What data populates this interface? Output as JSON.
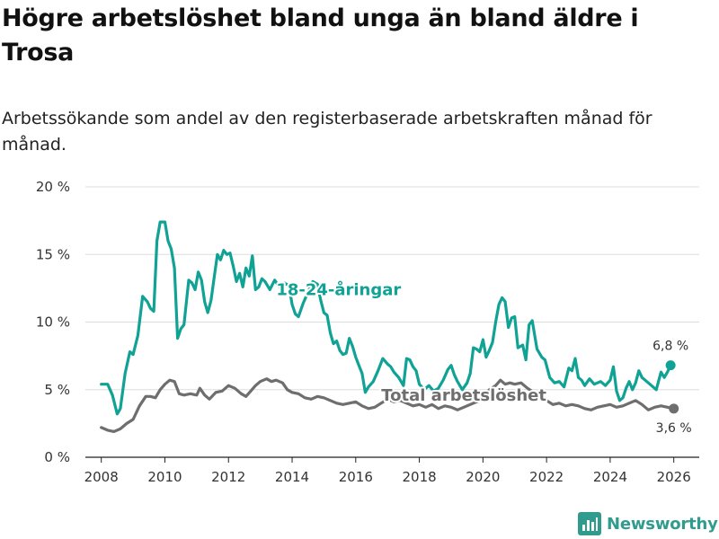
{
  "title": "Högre arbetslöshet bland unga än bland äldre i Trosa",
  "subtitle": "Arbetssökande som andel av den registerbaserade arbetskraften månad för månad.",
  "brand": {
    "name": "Newsworthy",
    "icon": "newsworthy-logo-icon",
    "color": "#2f9c8e"
  },
  "colors": {
    "youth": "#10a294",
    "total": "#6e6e6e",
    "grid": "#dddddd",
    "axis": "#222222",
    "text": "#333333"
  },
  "chart_data": {
    "type": "line",
    "xlabel": "",
    "ylabel": "",
    "xlim": [
      2007.5,
      2026.8
    ],
    "ylim": [
      0,
      20
    ],
    "grid": true,
    "y_ticks": [
      {
        "value": 0,
        "label": "0 %"
      },
      {
        "value": 5,
        "label": "5 %"
      },
      {
        "value": 10,
        "label": "10 %"
      },
      {
        "value": 15,
        "label": "15 %"
      },
      {
        "value": 20,
        "label": "20 %"
      }
    ],
    "x_ticks": [
      {
        "value": 2008,
        "label": "2008"
      },
      {
        "value": 2010,
        "label": "2010"
      },
      {
        "value": 2012,
        "label": "2012"
      },
      {
        "value": 2014,
        "label": "2014"
      },
      {
        "value": 2016,
        "label": "2016"
      },
      {
        "value": 2018,
        "label": "2018"
      },
      {
        "value": 2020,
        "label": "2020"
      },
      {
        "value": 2022,
        "label": "2022"
      },
      {
        "value": 2024,
        "label": "2024"
      },
      {
        "value": 2026,
        "label": "2026"
      }
    ],
    "series": [
      {
        "name": "18-24-åringar",
        "label_position": {
          "x": 2013.5,
          "y": 12.0
        },
        "end_label": "6,8 %",
        "points": [
          [
            2008.0,
            5.4
          ],
          [
            2008.2,
            5.4
          ],
          [
            2008.35,
            4.6
          ],
          [
            2008.5,
            3.2
          ],
          [
            2008.6,
            3.6
          ],
          [
            2008.75,
            6.2
          ],
          [
            2008.9,
            7.8
          ],
          [
            2009.0,
            7.6
          ],
          [
            2009.15,
            9.0
          ],
          [
            2009.3,
            11.9
          ],
          [
            2009.45,
            11.5
          ],
          [
            2009.55,
            11.0
          ],
          [
            2009.65,
            10.8
          ],
          [
            2009.75,
            16.0
          ],
          [
            2009.85,
            17.4
          ],
          [
            2010.0,
            17.4
          ],
          [
            2010.1,
            16.0
          ],
          [
            2010.2,
            15.4
          ],
          [
            2010.3,
            14.0
          ],
          [
            2010.4,
            8.8
          ],
          [
            2010.5,
            9.5
          ],
          [
            2010.6,
            9.8
          ],
          [
            2010.75,
            13.1
          ],
          [
            2010.85,
            12.9
          ],
          [
            2010.95,
            12.4
          ],
          [
            2011.05,
            13.7
          ],
          [
            2011.15,
            13.1
          ],
          [
            2011.25,
            11.5
          ],
          [
            2011.35,
            10.7
          ],
          [
            2011.45,
            11.6
          ],
          [
            2011.55,
            13.3
          ],
          [
            2011.65,
            15.0
          ],
          [
            2011.75,
            14.6
          ],
          [
            2011.85,
            15.3
          ],
          [
            2011.95,
            15.0
          ],
          [
            2012.05,
            15.1
          ],
          [
            2012.15,
            14.1
          ],
          [
            2012.25,
            13.0
          ],
          [
            2012.35,
            13.6
          ],
          [
            2012.45,
            12.6
          ],
          [
            2012.55,
            14.0
          ],
          [
            2012.65,
            13.4
          ],
          [
            2012.75,
            14.9
          ],
          [
            2012.85,
            12.4
          ],
          [
            2012.95,
            12.6
          ],
          [
            2013.05,
            13.2
          ],
          [
            2013.15,
            13.0
          ],
          [
            2013.3,
            12.4
          ],
          [
            2013.45,
            13.1
          ],
          [
            2013.6,
            12.6
          ],
          [
            2013.75,
            12.9
          ],
          [
            2013.9,
            12.7
          ],
          [
            2014.0,
            11.3
          ],
          [
            2014.1,
            10.6
          ],
          [
            2014.2,
            10.4
          ],
          [
            2014.35,
            11.4
          ],
          [
            2014.5,
            12.2
          ],
          [
            2014.65,
            13.0
          ],
          [
            2014.8,
            12.8
          ],
          [
            2014.9,
            11.6
          ],
          [
            2015.0,
            10.7
          ],
          [
            2015.1,
            10.5
          ],
          [
            2015.2,
            9.2
          ],
          [
            2015.3,
            8.4
          ],
          [
            2015.4,
            8.6
          ],
          [
            2015.5,
            7.9
          ],
          [
            2015.6,
            7.6
          ],
          [
            2015.7,
            7.7
          ],
          [
            2015.8,
            8.8
          ],
          [
            2015.9,
            8.2
          ],
          [
            2016.0,
            7.4
          ],
          [
            2016.1,
            6.8
          ],
          [
            2016.2,
            6.2
          ],
          [
            2016.3,
            4.8
          ],
          [
            2016.4,
            5.2
          ],
          [
            2016.55,
            5.6
          ],
          [
            2016.7,
            6.4
          ],
          [
            2016.85,
            7.3
          ],
          [
            2017.0,
            6.9
          ],
          [
            2017.1,
            6.7
          ],
          [
            2017.2,
            6.3
          ],
          [
            2017.35,
            5.9
          ],
          [
            2017.5,
            5.3
          ],
          [
            2017.6,
            7.3
          ],
          [
            2017.7,
            7.2
          ],
          [
            2017.8,
            6.7
          ],
          [
            2017.9,
            6.4
          ],
          [
            2018.0,
            5.4
          ],
          [
            2018.15,
            5.0
          ],
          [
            2018.3,
            5.3
          ],
          [
            2018.45,
            4.9
          ],
          [
            2018.6,
            5.1
          ],
          [
            2018.75,
            5.7
          ],
          [
            2018.9,
            6.5
          ],
          [
            2019.0,
            6.8
          ],
          [
            2019.1,
            6.1
          ],
          [
            2019.2,
            5.6
          ],
          [
            2019.35,
            5.0
          ],
          [
            2019.5,
            5.5
          ],
          [
            2019.6,
            6.2
          ],
          [
            2019.7,
            8.1
          ],
          [
            2019.8,
            8.0
          ],
          [
            2019.9,
            7.8
          ],
          [
            2020.0,
            8.7
          ],
          [
            2020.1,
            7.4
          ],
          [
            2020.2,
            7.9
          ],
          [
            2020.3,
            8.5
          ],
          [
            2020.4,
            10.0
          ],
          [
            2020.5,
            11.3
          ],
          [
            2020.6,
            11.8
          ],
          [
            2020.7,
            11.5
          ],
          [
            2020.8,
            9.6
          ],
          [
            2020.9,
            10.3
          ],
          [
            2021.0,
            10.4
          ],
          [
            2021.1,
            8.1
          ],
          [
            2021.25,
            8.3
          ],
          [
            2021.35,
            7.2
          ],
          [
            2021.45,
            9.8
          ],
          [
            2021.55,
            10.1
          ],
          [
            2021.7,
            8.0
          ],
          [
            2021.85,
            7.4
          ],
          [
            2021.95,
            7.2
          ],
          [
            2022.1,
            5.9
          ],
          [
            2022.25,
            5.5
          ],
          [
            2022.4,
            5.6
          ],
          [
            2022.55,
            5.2
          ],
          [
            2022.7,
            6.6
          ],
          [
            2022.8,
            6.4
          ],
          [
            2022.9,
            7.3
          ],
          [
            2023.0,
            5.9
          ],
          [
            2023.1,
            5.7
          ],
          [
            2023.2,
            5.3
          ],
          [
            2023.35,
            5.8
          ],
          [
            2023.5,
            5.4
          ],
          [
            2023.7,
            5.6
          ],
          [
            2023.85,
            5.3
          ],
          [
            2024.0,
            5.7
          ],
          [
            2024.1,
            6.7
          ],
          [
            2024.2,
            4.9
          ],
          [
            2024.3,
            4.2
          ],
          [
            2024.4,
            4.4
          ],
          [
            2024.5,
            5.1
          ],
          [
            2024.6,
            5.6
          ],
          [
            2024.7,
            5.0
          ],
          [
            2024.8,
            5.5
          ],
          [
            2024.9,
            6.4
          ],
          [
            2025.0,
            5.9
          ],
          [
            2025.15,
            5.6
          ],
          [
            2025.3,
            5.3
          ],
          [
            2025.45,
            5.0
          ],
          [
            2025.6,
            6.3
          ],
          [
            2025.7,
            5.9
          ],
          [
            2025.8,
            6.3
          ],
          [
            2025.9,
            6.8
          ]
        ]
      },
      {
        "name": "Total arbetslöshet",
        "label_position": {
          "x": 2019.4,
          "y": 4.2
        },
        "end_label": "3,6 %",
        "points": [
          [
            2008.0,
            2.2
          ],
          [
            2008.2,
            2.0
          ],
          [
            2008.4,
            1.9
          ],
          [
            2008.6,
            2.1
          ],
          [
            2008.8,
            2.5
          ],
          [
            2009.0,
            2.8
          ],
          [
            2009.2,
            3.8
          ],
          [
            2009.4,
            4.5
          ],
          [
            2009.55,
            4.5
          ],
          [
            2009.7,
            4.4
          ],
          [
            2009.85,
            5.0
          ],
          [
            2010.0,
            5.4
          ],
          [
            2010.15,
            5.7
          ],
          [
            2010.3,
            5.6
          ],
          [
            2010.45,
            4.7
          ],
          [
            2010.6,
            4.6
          ],
          [
            2010.8,
            4.7
          ],
          [
            2011.0,
            4.6
          ],
          [
            2011.1,
            5.1
          ],
          [
            2011.25,
            4.6
          ],
          [
            2011.4,
            4.3
          ],
          [
            2011.6,
            4.8
          ],
          [
            2011.8,
            4.9
          ],
          [
            2012.0,
            5.3
          ],
          [
            2012.2,
            5.1
          ],
          [
            2012.4,
            4.7
          ],
          [
            2012.55,
            4.5
          ],
          [
            2012.7,
            4.9
          ],
          [
            2012.85,
            5.3
          ],
          [
            2013.0,
            5.6
          ],
          [
            2013.2,
            5.8
          ],
          [
            2013.35,
            5.6
          ],
          [
            2013.5,
            5.7
          ],
          [
            2013.7,
            5.5
          ],
          [
            2013.85,
            5.0
          ],
          [
            2014.0,
            4.8
          ],
          [
            2014.2,
            4.7
          ],
          [
            2014.4,
            4.4
          ],
          [
            2014.6,
            4.3
          ],
          [
            2014.8,
            4.5
          ],
          [
            2015.0,
            4.4
          ],
          [
            2015.2,
            4.2
          ],
          [
            2015.4,
            4.0
          ],
          [
            2015.6,
            3.9
          ],
          [
            2015.8,
            4.0
          ],
          [
            2016.0,
            4.1
          ],
          [
            2016.2,
            3.8
          ],
          [
            2016.4,
            3.6
          ],
          [
            2016.6,
            3.7
          ],
          [
            2016.8,
            4.0
          ],
          [
            2017.0,
            4.3
          ],
          [
            2017.2,
            4.1
          ],
          [
            2017.4,
            4.2
          ],
          [
            2017.6,
            4.0
          ],
          [
            2017.8,
            3.8
          ],
          [
            2018.0,
            3.9
          ],
          [
            2018.2,
            3.7
          ],
          [
            2018.4,
            3.9
          ],
          [
            2018.6,
            3.6
          ],
          [
            2018.8,
            3.8
          ],
          [
            2019.0,
            3.7
          ],
          [
            2019.2,
            3.5
          ],
          [
            2019.4,
            3.7
          ],
          [
            2019.6,
            3.9
          ],
          [
            2019.8,
            4.1
          ],
          [
            2020.0,
            4.3
          ],
          [
            2020.2,
            5.0
          ],
          [
            2020.4,
            5.3
          ],
          [
            2020.55,
            5.7
          ],
          [
            2020.7,
            5.4
          ],
          [
            2020.85,
            5.5
          ],
          [
            2021.0,
            5.4
          ],
          [
            2021.2,
            5.5
          ],
          [
            2021.4,
            5.1
          ],
          [
            2021.6,
            4.8
          ],
          [
            2021.8,
            4.5
          ],
          [
            2022.0,
            4.2
          ],
          [
            2022.2,
            3.9
          ],
          [
            2022.4,
            4.0
          ],
          [
            2022.6,
            3.8
          ],
          [
            2022.8,
            3.9
          ],
          [
            2023.0,
            3.8
          ],
          [
            2023.2,
            3.6
          ],
          [
            2023.4,
            3.5
          ],
          [
            2023.6,
            3.7
          ],
          [
            2023.8,
            3.8
          ],
          [
            2024.0,
            3.9
          ],
          [
            2024.2,
            3.7
          ],
          [
            2024.4,
            3.8
          ],
          [
            2024.6,
            4.0
          ],
          [
            2024.8,
            4.2
          ],
          [
            2025.0,
            3.9
          ],
          [
            2025.2,
            3.5
          ],
          [
            2025.4,
            3.7
          ],
          [
            2025.6,
            3.8
          ],
          [
            2025.8,
            3.7
          ],
          [
            2026.0,
            3.6
          ]
        ]
      }
    ]
  }
}
